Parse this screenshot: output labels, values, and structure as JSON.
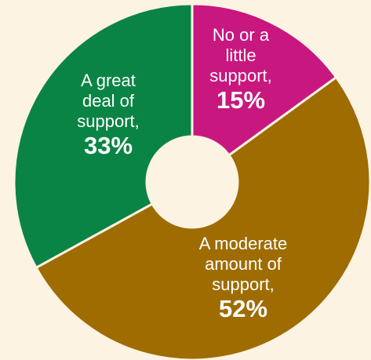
{
  "chart_data": {
    "type": "pie",
    "donut": true,
    "slices": [
      {
        "label": "No or a little support,",
        "label_lines": [
          "No or a",
          "little",
          "support,"
        ],
        "value": 15,
        "value_label": "15%",
        "color": "#C8187F"
      },
      {
        "label": "A moderate amount of support,",
        "label_lines": [
          "A moderate",
          "amount of",
          "support,"
        ],
        "value": 52,
        "value_label": "52%",
        "color": "#9E6C00"
      },
      {
        "label": "A great deal of support,",
        "label_lines": [
          "A great",
          "deal of",
          "support,"
        ],
        "value": 33,
        "value_label": "33%",
        "color": "#0A8444"
      }
    ],
    "start_angle_deg": 0,
    "direction": "clockwise",
    "legend": "none"
  },
  "colors": {
    "background": "#FDF3E3",
    "separator": "#FDF3E3",
    "label_text": "#FFFFFF"
  }
}
